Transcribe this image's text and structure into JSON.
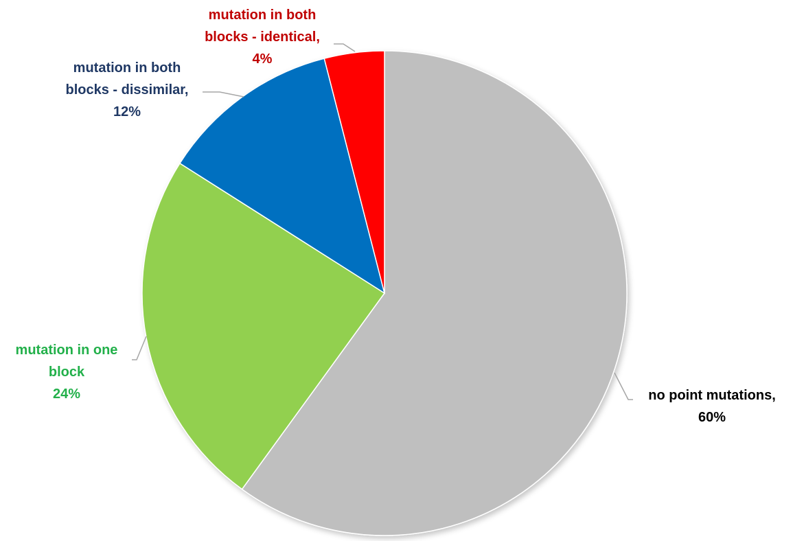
{
  "chart_data": {
    "type": "pie",
    "title": "",
    "start_angle_deg": 0,
    "direction": "clockwise",
    "slices": [
      {
        "label_lines": [
          "no point mutations,",
          "60%"
        ],
        "category": "no point mutations",
        "value": 60,
        "value_label": "60%",
        "color": "#bfbfbf",
        "label_color": "#000000"
      },
      {
        "label_lines": [
          "mutation in one",
          "block",
          "24%"
        ],
        "category": "mutation in one block",
        "value": 24,
        "value_label": "24%",
        "color": "#92d050",
        "label_color": "#22b04a"
      },
      {
        "label_lines": [
          "mutation in both",
          "blocks - dissimilar,",
          "12%"
        ],
        "category": "mutation in both blocks - dissimilar",
        "value": 12,
        "value_label": "12%",
        "color": "#0070c0",
        "label_color": "#1f3864"
      },
      {
        "label_lines": [
          "mutation in both",
          "blocks - identical,",
          "4%"
        ],
        "category": "mutation in both blocks - identical",
        "value": 4,
        "value_label": "4%",
        "color": "#ff0000",
        "label_color": "#c00000"
      }
    ],
    "leader_line_color": "#a6a6a6"
  }
}
